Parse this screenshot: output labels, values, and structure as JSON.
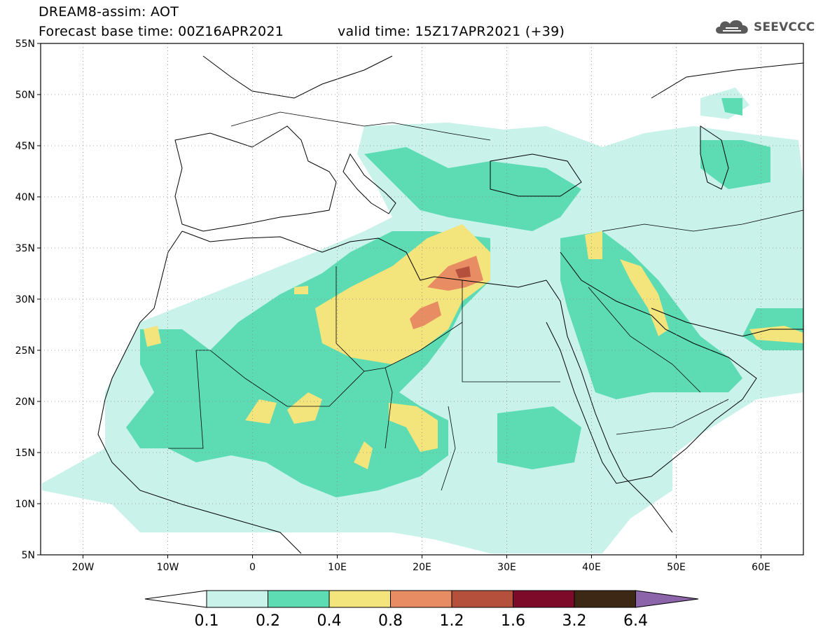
{
  "header": {
    "title_line1": "DREAM8-assim: AOT",
    "forecast_base": "Forecast base time: 00Z16APR2021",
    "valid_time": "valid time: 15Z17APR2021 (+39)"
  },
  "logo": {
    "text": "SEEVCCC",
    "icon": "cloud-icon",
    "color": "#5a5a5a"
  },
  "map": {
    "lon_range": [
      -25,
      65
    ],
    "lat_range": [
      5,
      55
    ],
    "lat_ticks": [
      {
        "value": 55,
        "label": "55N"
      },
      {
        "value": 50,
        "label": "50N"
      },
      {
        "value": 45,
        "label": "45N"
      },
      {
        "value": 40,
        "label": "40N"
      },
      {
        "value": 35,
        "label": "35N"
      },
      {
        "value": 30,
        "label": "30N"
      },
      {
        "value": 25,
        "label": "25N"
      },
      {
        "value": 20,
        "label": "20N"
      },
      {
        "value": 15,
        "label": "15N"
      },
      {
        "value": 10,
        "label": "10N"
      },
      {
        "value": 5,
        "label": "5N"
      }
    ],
    "lon_ticks": [
      {
        "value": -20,
        "label": "20W"
      },
      {
        "value": -10,
        "label": "10W"
      },
      {
        "value": 0,
        "label": "0"
      },
      {
        "value": 10,
        "label": "10E"
      },
      {
        "value": 20,
        "label": "20E"
      },
      {
        "value": 30,
        "label": "30E"
      },
      {
        "value": 40,
        "label": "40E"
      },
      {
        "value": 50,
        "label": "50E"
      },
      {
        "value": 60,
        "label": "60E"
      }
    ],
    "grid": "dotted"
  },
  "colorbar": {
    "labels": [
      "0.1",
      "0.2",
      "0.4",
      "0.8",
      "1.2",
      "1.6",
      "3.2",
      "6.4"
    ],
    "colors": [
      "#ffffff",
      "#c8f2ea",
      "#5ddcb4",
      "#f4e47c",
      "#e88c64",
      "#b4503c",
      "#7d0a28",
      "#3c2814",
      "#8c64aa"
    ]
  }
}
